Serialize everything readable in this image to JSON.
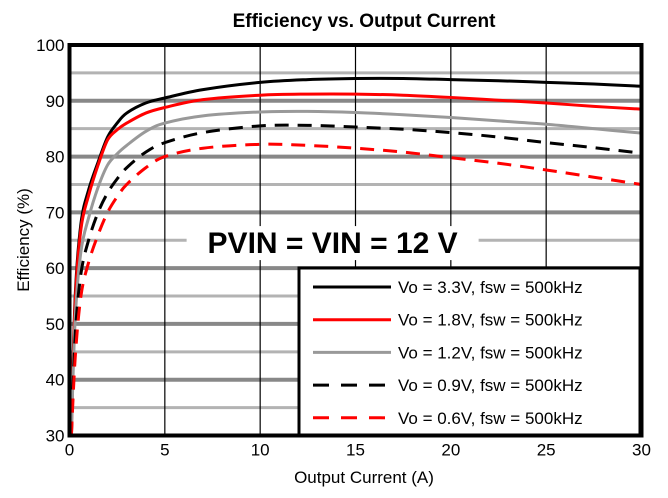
{
  "chart_data": {
    "type": "line",
    "title": "Efficiency vs. Output Current",
    "xlabel": "Output Current (A)",
    "ylabel": "Efficiency (%)",
    "xlim": [
      0,
      30
    ],
    "ylim": [
      30,
      100
    ],
    "xticks": [
      0,
      5,
      10,
      15,
      20,
      25,
      30
    ],
    "yticks": [
      30,
      40,
      50,
      60,
      70,
      80,
      90,
      100
    ],
    "grid": true,
    "annotation": "PVIN = VIN = 12 V",
    "legend_position": "bottom-right",
    "series": [
      {
        "name": "Vo = 3.3V, fsw = 500kHz",
        "color": "#000000",
        "style": "solid",
        "x": [
          0.1,
          0.3,
          0.6,
          1,
          1.5,
          2,
          2.5,
          3,
          4,
          5,
          7,
          10,
          12.5,
          15,
          17.5,
          20,
          22.5,
          25,
          27.5,
          30
        ],
        "y": [
          32,
          55,
          68,
          74,
          79,
          83.5,
          86,
          87.8,
          89.6,
          90.5,
          92,
          93.3,
          93.8,
          94,
          94,
          93.8,
          93.6,
          93.3,
          93,
          92.6
        ]
      },
      {
        "name": "Vo = 1.8V, fsw = 500kHz",
        "color": "#ff0000",
        "style": "solid",
        "x": [
          0.1,
          0.3,
          0.6,
          1,
          1.5,
          2,
          2.5,
          3,
          4,
          5,
          7,
          10,
          12.5,
          15,
          17.5,
          20,
          22.5,
          25,
          27.5,
          30
        ],
        "y": [
          31,
          54,
          67,
          73,
          78.5,
          83,
          84.8,
          86,
          87.8,
          88.8,
          90.2,
          91,
          91.2,
          91.2,
          91,
          90.6,
          90.1,
          89.6,
          89,
          88.5
        ]
      },
      {
        "name": "Vo = 1.2V, fsw = 500kHz",
        "color": "#999999",
        "style": "solid",
        "x": [
          0.1,
          0.3,
          0.6,
          1,
          1.5,
          2,
          2.5,
          3,
          4,
          5,
          7,
          10,
          12.5,
          15,
          17.5,
          20,
          22.5,
          25,
          27.5,
          30
        ],
        "y": [
          31,
          51,
          63,
          69,
          74.5,
          78.5,
          80.5,
          82,
          84.5,
          86,
          87.3,
          88,
          88.1,
          87.9,
          87.5,
          87,
          86.4,
          85.8,
          85,
          84.2
        ]
      },
      {
        "name": "Vo = 0.9V, fsw = 500kHz",
        "color": "#000000",
        "style": "dashed",
        "x": [
          0.1,
          0.3,
          0.6,
          1,
          1.5,
          2,
          2.5,
          3,
          4,
          5,
          7,
          10,
          12.5,
          15,
          17.5,
          20,
          22.5,
          25,
          27.5,
          30
        ],
        "y": [
          30,
          48,
          59,
          65,
          70,
          73.5,
          76,
          78,
          80.8,
          82.5,
          84.3,
          85.5,
          85.6,
          85.3,
          84.9,
          84.3,
          83.5,
          82.5,
          81.6,
          80.6
        ]
      },
      {
        "name": "Vo = 0.6V, fsw = 500kHz",
        "color": "#ff0000",
        "style": "dashed",
        "x": [
          0.1,
          0.3,
          0.6,
          1,
          1.5,
          2,
          2.5,
          3,
          4,
          5,
          7,
          10,
          12.5,
          15,
          17.5,
          20,
          22.5,
          25,
          27.5,
          30
        ],
        "y": [
          30,
          44,
          55,
          61,
          66,
          70,
          72.8,
          75,
          78,
          80,
          81.5,
          82.2,
          82,
          81.5,
          80.8,
          79.8,
          78.8,
          77.6,
          76.3,
          75
        ]
      }
    ]
  }
}
